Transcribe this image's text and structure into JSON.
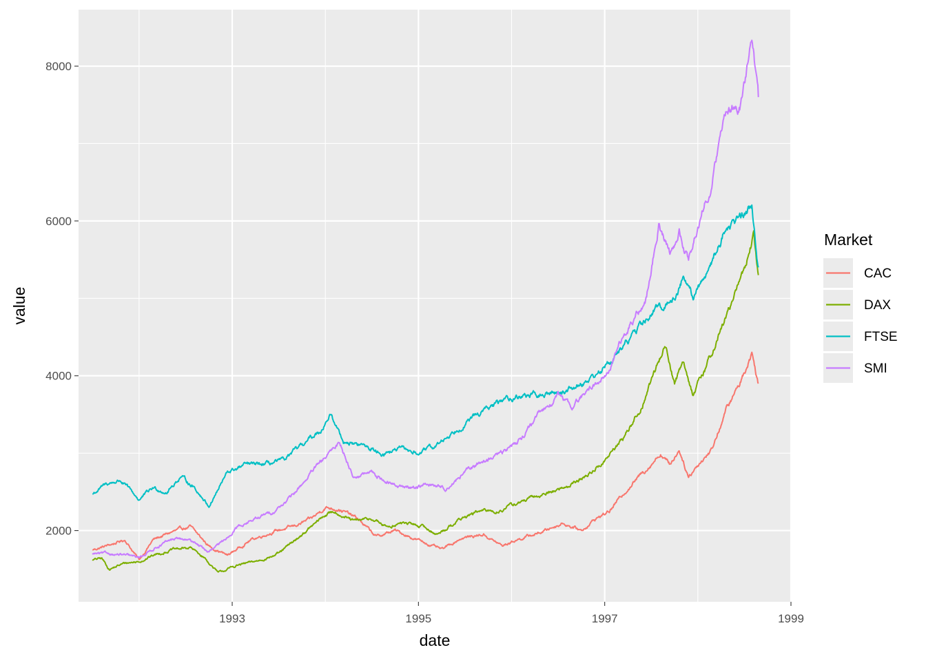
{
  "chart_data": {
    "type": "line",
    "xlabel": "date",
    "ylabel": "value",
    "x_ticks": [
      "1993",
      "1995",
      "1997",
      "1999"
    ],
    "y_ticks": [
      "2000",
      "4000",
      "6000",
      "8000"
    ],
    "xlim": [
      1991.35,
      1999.0
    ],
    "ylim": [
      1080,
      8730
    ],
    "grid": true,
    "legend": {
      "title": "Market",
      "placement": "right",
      "items": [
        "CAC",
        "DAX",
        "FTSE",
        "SMI"
      ]
    },
    "series": [
      {
        "name": "CAC",
        "color": "#F8766D",
        "points": [
          [
            1991.5,
            1750
          ],
          [
            1991.7,
            1820
          ],
          [
            1991.85,
            1880
          ],
          [
            1992.0,
            1620
          ],
          [
            1992.15,
            1880
          ],
          [
            1992.35,
            1980
          ],
          [
            1992.55,
            2050
          ],
          [
            1992.75,
            1800
          ],
          [
            1992.95,
            1680
          ],
          [
            1993.2,
            1880
          ],
          [
            1993.45,
            1990
          ],
          [
            1993.65,
            2050
          ],
          [
            1993.85,
            2150
          ],
          [
            1994.0,
            2300
          ],
          [
            1994.15,
            2280
          ],
          [
            1994.35,
            2150
          ],
          [
            1994.55,
            1920
          ],
          [
            1994.75,
            2000
          ],
          [
            1994.95,
            1900
          ],
          [
            1995.1,
            1830
          ],
          [
            1995.25,
            1750
          ],
          [
            1995.45,
            1900
          ],
          [
            1995.7,
            1950
          ],
          [
            1995.9,
            1800
          ],
          [
            1996.05,
            1880
          ],
          [
            1996.3,
            1970
          ],
          [
            1996.55,
            2100
          ],
          [
            1996.75,
            2000
          ],
          [
            1996.9,
            2150
          ],
          [
            1997.05,
            2250
          ],
          [
            1997.25,
            2550
          ],
          [
            1997.45,
            2800
          ],
          [
            1997.6,
            3000
          ],
          [
            1997.7,
            2850
          ],
          [
            1997.8,
            3050
          ],
          [
            1997.9,
            2700
          ],
          [
            1998.0,
            2850
          ],
          [
            1998.15,
            3050
          ],
          [
            1998.3,
            3550
          ],
          [
            1998.45,
            3900
          ],
          [
            1998.58,
            4300
          ],
          [
            1998.65,
            3900
          ]
        ]
      },
      {
        "name": "DAX",
        "color": "#7CAE00",
        "points": [
          [
            1991.5,
            1620
          ],
          [
            1991.6,
            1640
          ],
          [
            1991.68,
            1500
          ],
          [
            1991.85,
            1580
          ],
          [
            1992.0,
            1600
          ],
          [
            1992.15,
            1680
          ],
          [
            1992.35,
            1750
          ],
          [
            1992.55,
            1780
          ],
          [
            1992.7,
            1650
          ],
          [
            1992.85,
            1450
          ],
          [
            1993.05,
            1550
          ],
          [
            1993.25,
            1600
          ],
          [
            1993.5,
            1700
          ],
          [
            1993.75,
            1950
          ],
          [
            1994.0,
            2200
          ],
          [
            1994.1,
            2250
          ],
          [
            1994.3,
            2120
          ],
          [
            1994.5,
            2150
          ],
          [
            1994.65,
            2050
          ],
          [
            1994.85,
            2100
          ],
          [
            1995.05,
            2050
          ],
          [
            1995.2,
            1950
          ],
          [
            1995.45,
            2150
          ],
          [
            1995.65,
            2250
          ],
          [
            1995.85,
            2250
          ],
          [
            1996.05,
            2350
          ],
          [
            1996.3,
            2450
          ],
          [
            1996.55,
            2550
          ],
          [
            1996.8,
            2700
          ],
          [
            1997.0,
            2900
          ],
          [
            1997.2,
            3200
          ],
          [
            1997.4,
            3600
          ],
          [
            1997.55,
            4100
          ],
          [
            1997.65,
            4400
          ],
          [
            1997.75,
            3900
          ],
          [
            1997.85,
            4200
          ],
          [
            1997.95,
            3750
          ],
          [
            1998.05,
            4000
          ],
          [
            1998.25,
            4600
          ],
          [
            1998.45,
            5200
          ],
          [
            1998.6,
            5800
          ],
          [
            1998.65,
            5300
          ]
        ]
      },
      {
        "name": "FTSE",
        "color": "#00BFC4",
        "points": [
          [
            1991.5,
            2470
          ],
          [
            1991.65,
            2600
          ],
          [
            1991.8,
            2650
          ],
          [
            1992.0,
            2400
          ],
          [
            1992.15,
            2550
          ],
          [
            1992.3,
            2500
          ],
          [
            1992.45,
            2700
          ],
          [
            1992.6,
            2550
          ],
          [
            1992.75,
            2320
          ],
          [
            1992.95,
            2750
          ],
          [
            1993.15,
            2850
          ],
          [
            1993.35,
            2850
          ],
          [
            1993.55,
            2900
          ],
          [
            1993.75,
            3100
          ],
          [
            1993.95,
            3300
          ],
          [
            1994.05,
            3500
          ],
          [
            1994.2,
            3150
          ],
          [
            1994.4,
            3100
          ],
          [
            1994.6,
            3000
          ],
          [
            1994.8,
            3050
          ],
          [
            1995.0,
            3000
          ],
          [
            1995.2,
            3100
          ],
          [
            1995.45,
            3350
          ],
          [
            1995.7,
            3550
          ],
          [
            1995.95,
            3700
          ],
          [
            1996.15,
            3750
          ],
          [
            1996.35,
            3750
          ],
          [
            1996.55,
            3800
          ],
          [
            1996.75,
            3900
          ],
          [
            1996.95,
            4050
          ],
          [
            1997.15,
            4300
          ],
          [
            1997.35,
            4600
          ],
          [
            1997.55,
            4850
          ],
          [
            1997.75,
            5000
          ],
          [
            1997.85,
            5300
          ],
          [
            1997.95,
            5000
          ],
          [
            1998.1,
            5350
          ],
          [
            1998.3,
            5900
          ],
          [
            1998.45,
            6050
          ],
          [
            1998.58,
            6200
          ],
          [
            1998.65,
            5400
          ]
        ]
      },
      {
        "name": "SMI",
        "color": "#C77CFF",
        "points": [
          [
            1991.5,
            1700
          ],
          [
            1991.7,
            1700
          ],
          [
            1991.85,
            1680
          ],
          [
            1992.0,
            1650
          ],
          [
            1992.2,
            1800
          ],
          [
            1992.4,
            1900
          ],
          [
            1992.6,
            1850
          ],
          [
            1992.75,
            1720
          ],
          [
            1992.9,
            1850
          ],
          [
            1993.05,
            2050
          ],
          [
            1993.25,
            2150
          ],
          [
            1993.45,
            2250
          ],
          [
            1993.65,
            2450
          ],
          [
            1993.85,
            2750
          ],
          [
            1994.05,
            3000
          ],
          [
            1994.15,
            3150
          ],
          [
            1994.3,
            2700
          ],
          [
            1994.5,
            2750
          ],
          [
            1994.7,
            2600
          ],
          [
            1994.9,
            2550
          ],
          [
            1995.1,
            2600
          ],
          [
            1995.3,
            2550
          ],
          [
            1995.5,
            2750
          ],
          [
            1995.7,
            2900
          ],
          [
            1995.9,
            3000
          ],
          [
            1996.1,
            3200
          ],
          [
            1996.3,
            3500
          ],
          [
            1996.5,
            3750
          ],
          [
            1996.65,
            3600
          ],
          [
            1996.85,
            3850
          ],
          [
            1997.05,
            4050
          ],
          [
            1997.15,
            4400
          ],
          [
            1997.3,
            4700
          ],
          [
            1997.45,
            5000
          ],
          [
            1997.58,
            5950
          ],
          [
            1997.7,
            5600
          ],
          [
            1997.8,
            5850
          ],
          [
            1997.9,
            5500
          ],
          [
            1998.0,
            5950
          ],
          [
            1998.15,
            6500
          ],
          [
            1998.3,
            7400
          ],
          [
            1998.45,
            7500
          ],
          [
            1998.55,
            8100
          ],
          [
            1998.58,
            8400
          ],
          [
            1998.65,
            7600
          ]
        ]
      }
    ]
  }
}
